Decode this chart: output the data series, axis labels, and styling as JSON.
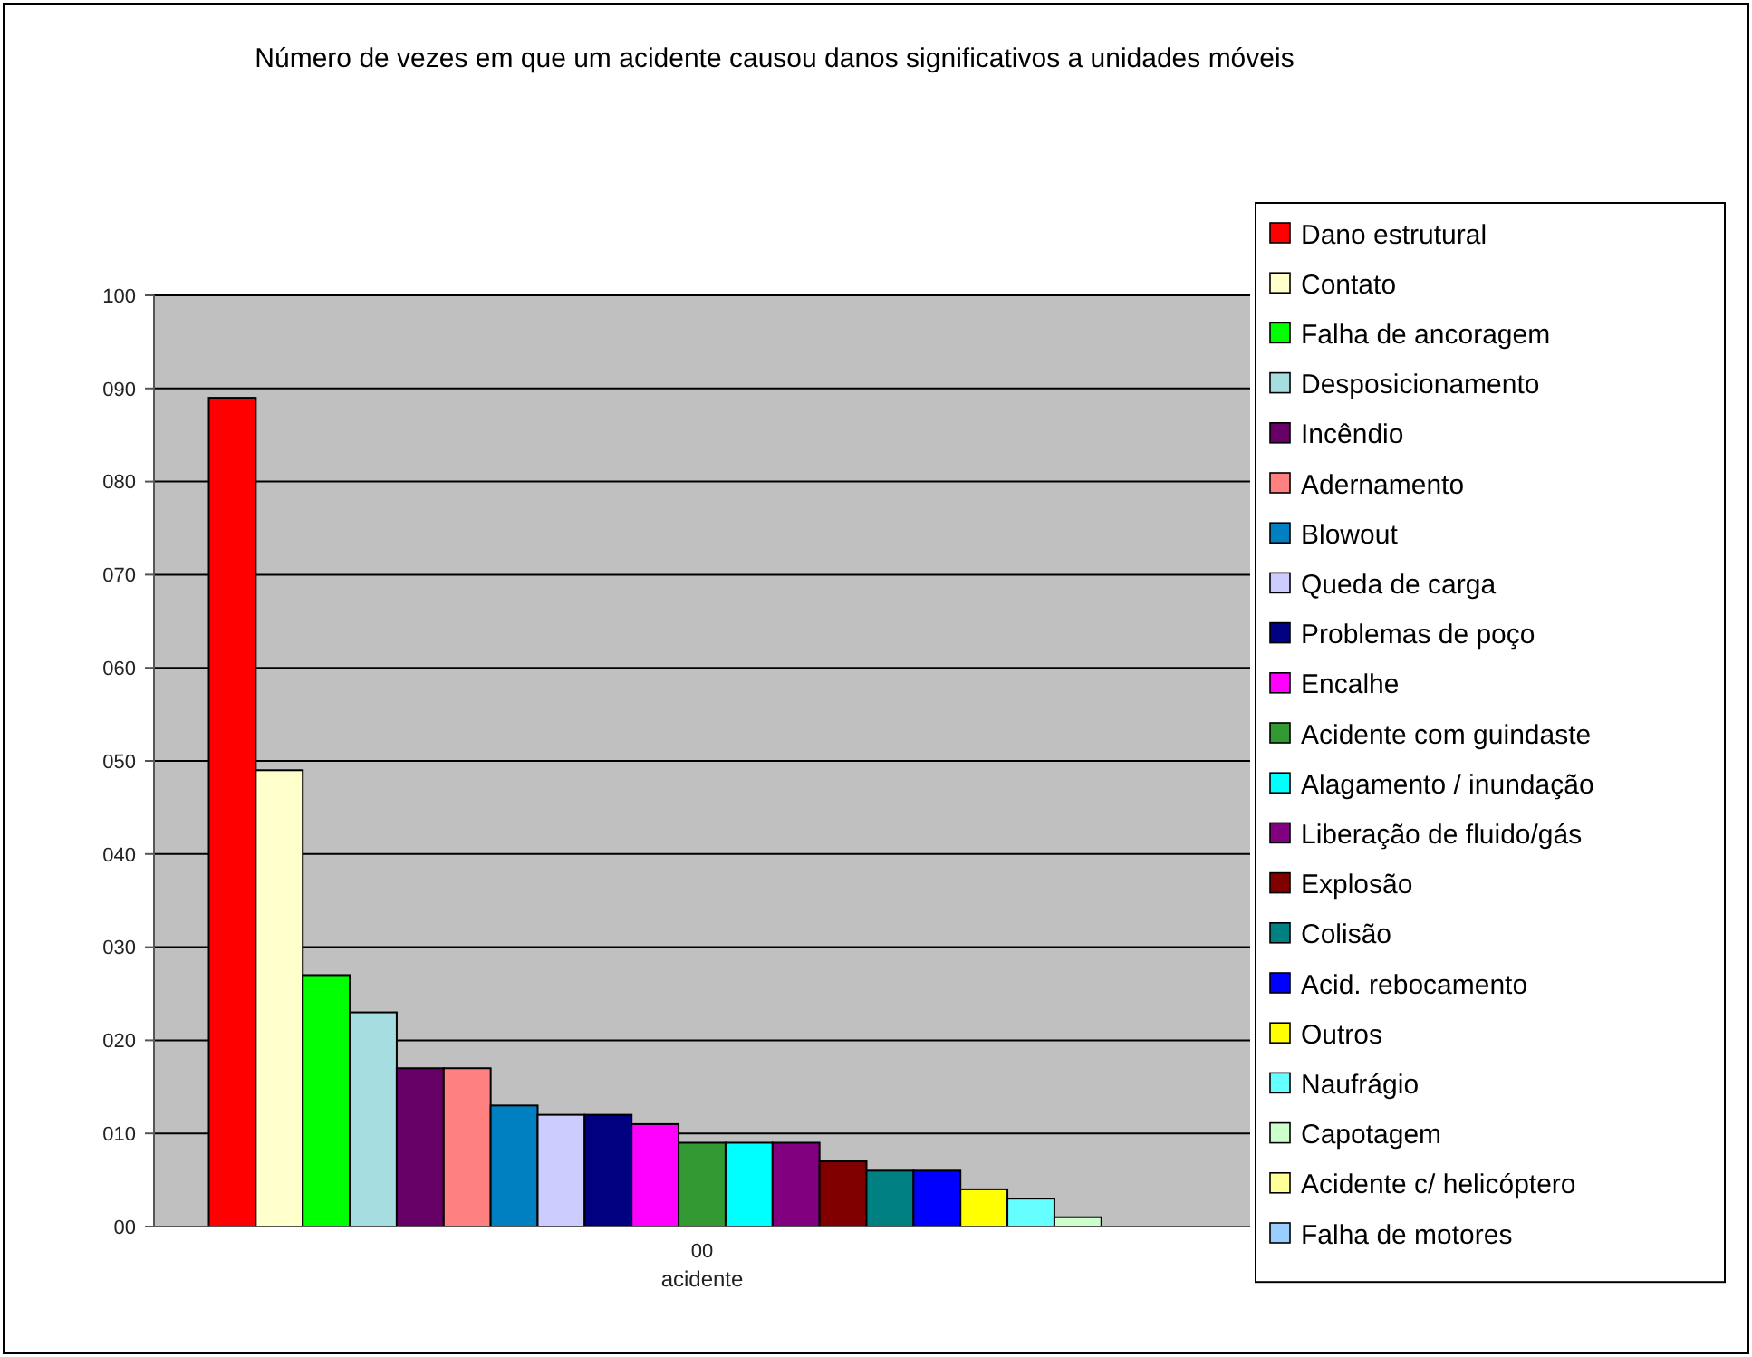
{
  "chart_data": {
    "type": "bar",
    "title": "Número de vezes em que um acidente causou danos significativos a unidades móveis",
    "xlabel": "acidente",
    "categories": [
      "00"
    ],
    "series": [
      {
        "name": "Dano estrutural",
        "color": "#ff0000",
        "values": [
          89
        ]
      },
      {
        "name": "Contato",
        "color": "#ffffcc",
        "values": [
          49
        ]
      },
      {
        "name": "Falha de ancoragem",
        "color": "#00ff00",
        "values": [
          27
        ]
      },
      {
        "name": "Desposicionamento",
        "color": "#a6dde0",
        "values": [
          23
        ]
      },
      {
        "name": "Incêndio",
        "color": "#660066",
        "values": [
          17
        ]
      },
      {
        "name": "Adernamento",
        "color": "#ff8080",
        "values": [
          17
        ]
      },
      {
        "name": "Blowout",
        "color": "#0080c0",
        "values": [
          13
        ]
      },
      {
        "name": "Queda de carga",
        "color": "#ccccff",
        "values": [
          12
        ]
      },
      {
        "name": "Problemas de poço",
        "color": "#000080",
        "values": [
          12
        ]
      },
      {
        "name": "Encalhe",
        "color": "#ff00ff",
        "values": [
          11
        ]
      },
      {
        "name": "Acidente com guindaste",
        "color": "#339933",
        "values": [
          9
        ]
      },
      {
        "name": "Alagamento / inundação",
        "color": "#00ffff",
        "values": [
          9
        ]
      },
      {
        "name": "Liberação de fluido/gás",
        "color": "#800080",
        "values": [
          9
        ]
      },
      {
        "name": "Explosão",
        "color": "#800000",
        "values": [
          7
        ]
      },
      {
        "name": "Colisão",
        "color": "#008080",
        "values": [
          6
        ]
      },
      {
        "name": "Acid. rebocamento",
        "color": "#0000ff",
        "values": [
          6
        ]
      },
      {
        "name": "Outros",
        "color": "#ffff00",
        "values": [
          4
        ]
      },
      {
        "name": "Naufrágio",
        "color": "#66ffff",
        "values": [
          3
        ]
      },
      {
        "name": "Capotagem",
        "color": "#ccffcc",
        "values": [
          1
        ]
      },
      {
        "name": "Acidente c/ helicóptero",
        "color": "#ffff99",
        "values": [
          0
        ]
      },
      {
        "name": "Falha de motores",
        "color": "#99ccff",
        "values": [
          0
        ]
      }
    ],
    "ylim": [
      0,
      100
    ],
    "yticks": [
      {
        "value": 0,
        "label": "00"
      },
      {
        "value": 10,
        "label": "010"
      },
      {
        "value": 20,
        "label": "020"
      },
      {
        "value": 30,
        "label": "030"
      },
      {
        "value": 40,
        "label": "040"
      },
      {
        "value": 50,
        "label": "050"
      },
      {
        "value": 60,
        "label": "060"
      },
      {
        "value": 70,
        "label": "070"
      },
      {
        "value": 80,
        "label": "080"
      },
      {
        "value": 90,
        "label": "090"
      },
      100
    ],
    "grid": "y",
    "legend": "right"
  }
}
